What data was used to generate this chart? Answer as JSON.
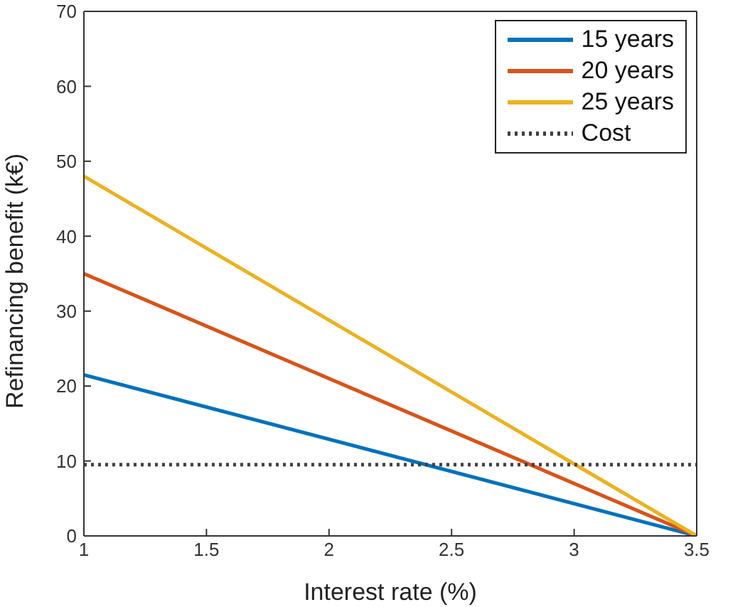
{
  "chart_data": {
    "type": "line",
    "xlabel": "Interest rate (%)",
    "ylabel": "Refinancing benefit (k€)",
    "x": [
      1,
      3.5
    ],
    "series": [
      {
        "name": "15 years",
        "color": "#0072bd",
        "values": [
          21.5,
          0
        ]
      },
      {
        "name": "20 years",
        "color": "#d95319",
        "values": [
          35,
          0
        ]
      },
      {
        "name": "25 years",
        "color": "#edb120",
        "values": [
          48,
          0
        ]
      },
      {
        "name": "Cost",
        "color": "#404040",
        "values": [
          9.5,
          9.5
        ],
        "line_style": "dotted"
      }
    ],
    "xlim": [
      1,
      3.5
    ],
    "xticks": [
      1,
      1.5,
      2,
      2.5,
      3,
      3.5
    ],
    "ylim": [
      0,
      70
    ],
    "yticks": [
      0,
      10,
      20,
      30,
      40,
      50,
      60,
      70
    ],
    "grid": false,
    "legend": "top right",
    "marker": "none",
    "line_style": "solid"
  }
}
